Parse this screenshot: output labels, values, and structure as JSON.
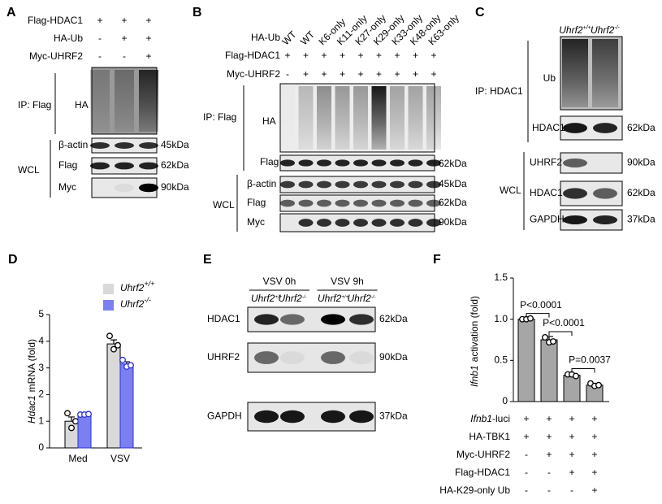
{
  "blots": {
    "a": {
      "label": "A",
      "rows": [
        {
          "name": "Flag-HDAC1",
          "signs": [
            "+",
            "+",
            "+"
          ]
        },
        {
          "name": "HA-Ub",
          "signs": [
            "-",
            "+",
            "+"
          ]
        },
        {
          "name": "Myc-UHRF2",
          "signs": [
            "-",
            "-",
            "+"
          ]
        }
      ],
      "ip": "IP: Flag",
      "ip_blot": "HA",
      "wcl": "WCL",
      "wcl_blots": [
        {
          "name": "β-actin",
          "size": "45kDa"
        },
        {
          "name": "Flag",
          "size": "62kDa"
        },
        {
          "name": "Myc",
          "size": "90kDa"
        }
      ]
    },
    "b": {
      "label": "B",
      "row_label": "HA-Ub",
      "lanes": [
        "WT",
        "WT",
        "K6-only",
        "K11-only",
        "K27-only",
        "K29-only",
        "K33-only",
        "K48-only",
        "K63-only"
      ],
      "rows": [
        {
          "name": "Flag-HDAC1",
          "signs": [
            "+",
            "+",
            "+",
            "+",
            "+",
            "+",
            "+",
            "+",
            "+"
          ]
        },
        {
          "name": "Myc-UHRF2",
          "signs": [
            "-",
            "+",
            "+",
            "+",
            "+",
            "+",
            "+",
            "+",
            "+"
          ]
        }
      ],
      "ip": "IP: Flag",
      "ip_blots": [
        {
          "name": "HA"
        },
        {
          "name": "Flag",
          "size": "62kDa"
        }
      ],
      "wcl": "WCL",
      "wcl_blots": [
        {
          "name": "β-actin",
          "size": "45kDa"
        },
        {
          "name": "Flag",
          "size": "62kDa"
        },
        {
          "name": "Myc",
          "size": "90kDa"
        }
      ]
    },
    "c": {
      "label": "C",
      "genotypes": [
        {
          "gene": "Uhrf2",
          "sup": "+/+"
        },
        {
          "gene": "Uhrf2",
          "sup": "-/-"
        }
      ],
      "ip": "IP: HDAC1",
      "ip_blots": [
        {
          "name": "Ub"
        },
        {
          "name": "HDAC1",
          "size": "62kDa"
        }
      ],
      "wcl": "WCL",
      "wcl_blots": [
        {
          "name": "UHRF2",
          "size": "90kDa"
        },
        {
          "name": "HDAC1",
          "size": "62kDa"
        },
        {
          "name": "GAPDH",
          "size": "37kDa"
        }
      ]
    },
    "e": {
      "label": "E",
      "conditions": [
        "VSV  0h",
        "VSV  9h"
      ],
      "genotypes": [
        {
          "gene": "Uhrf2",
          "sup": "+/+"
        },
        {
          "gene": "Uhrf2",
          "sup": "-/-"
        },
        {
          "gene": "Uhrf2",
          "sup": "+/+"
        },
        {
          "gene": "Uhrf2",
          "sup": "-/-"
        }
      ],
      "blots": [
        {
          "name": "HDAC1",
          "size": "62kDa"
        },
        {
          "name": "UHRF2",
          "size": "90kDa"
        },
        {
          "name": "GAPDH",
          "size": "37kDa"
        }
      ]
    }
  },
  "chart_data": [
    {
      "type": "bar",
      "panel": "D",
      "ylabel_italic": "Hdac1",
      "ylabel": "mRNA (fold)",
      "categories": [
        "Med",
        "VSV"
      ],
      "series": [
        {
          "name": "Uhrf2",
          "name_sup": "+/+",
          "color": "#d9d9d9",
          "values": [
            1.0,
            3.9
          ],
          "errors": [
            0.16,
            0.15
          ],
          "points": [
            [
              1.3,
              0.75,
              1.0
            ],
            [
              4.2,
              3.7,
              3.85
            ]
          ]
        },
        {
          "name": "Uhrf2",
          "name_sup": "-/-",
          "color": "#7b7ff0",
          "values": [
            1.25,
            3.15
          ],
          "errors": [
            0.01,
            0.08
          ],
          "points": [
            [
              1.25,
              1.25,
              1.27
            ],
            [
              3.3,
              3.05,
              3.1
            ]
          ]
        }
      ],
      "ylim": [
        0,
        5
      ],
      "yticks": [
        0,
        1,
        2,
        3,
        4,
        5
      ]
    },
    {
      "type": "bar",
      "panel": "F",
      "ylabel_italic": "Ifnb1",
      "ylabel": "activation (fold)",
      "color": "#a6a6a6",
      "values": [
        1.0,
        0.75,
        0.32,
        0.2
      ],
      "errors": [
        0.01,
        0.04,
        0.02,
        0.02
      ],
      "points": [
        [
          1.0,
          1.0,
          1.01
        ],
        [
          0.78,
          0.72,
          0.73
        ],
        [
          0.33,
          0.33,
          0.31
        ],
        [
          0.22,
          0.19,
          0.2
        ]
      ],
      "comparisons": [
        "P<0.0001",
        "P<0.0001",
        "P=0.0037"
      ],
      "ylim": [
        0,
        1.5
      ],
      "yticks": [
        0,
        0.5,
        {
          "value": 1,
          "label": "1.0"
        },
        1.5
      ],
      "conditions": [
        {
          "name_italic": "Ifnb1",
          "name": "-luci",
          "signs": [
            "+",
            "+",
            "+",
            "+"
          ]
        },
        {
          "name": "HA-TBK1",
          "signs": [
            "+",
            "+",
            "+",
            "+"
          ]
        },
        {
          "name": "Myc-UHRF2",
          "signs": [
            "-",
            "+",
            "+",
            "+"
          ]
        },
        {
          "name": "Flag-HDAC1",
          "signs": [
            "-",
            "-",
            "+",
            "+"
          ]
        },
        {
          "name": "HA-K29-only Ub",
          "signs": [
            "-",
            "-",
            "-",
            "+"
          ]
        }
      ]
    }
  ]
}
